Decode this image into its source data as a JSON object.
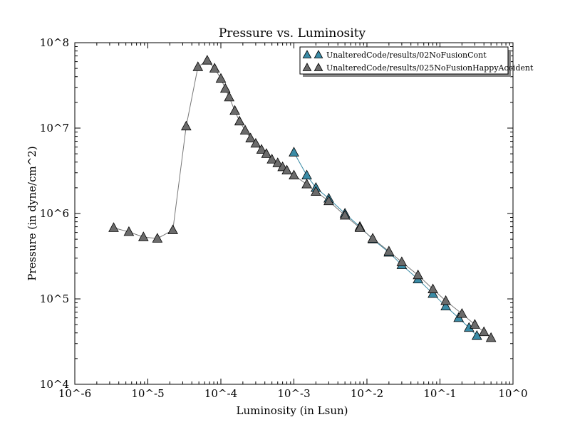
{
  "chart_data": {
    "type": "scatter",
    "title": "Pressure vs. Luminosity",
    "xlabel": "Luminosity (in Lsun)",
    "ylabel": "Pressure (in dyne/cm^2)",
    "xscale": "log",
    "yscale": "log",
    "xlim": [
      1e-06,
      1
    ],
    "ylim": [
      10000,
      100000000
    ],
    "x_tick_values": [
      1e-06,
      1e-05,
      0.0001,
      0.001,
      0.01,
      0.1,
      1
    ],
    "x_tick_labels": [
      "10^-6",
      "10^-5",
      "10^-4",
      "10^-3",
      "10^-2",
      "10^-1",
      "10^0"
    ],
    "y_tick_values": [
      10000,
      100000,
      1000000,
      10000000,
      100000000
    ],
    "y_tick_labels": [
      "10^4",
      "10^5",
      "10^6",
      "10^7",
      "10^8"
    ],
    "grid": false,
    "legend_position": "top-right",
    "marker": "triangle-up",
    "series": [
      {
        "name": "UnalteredCode/results/02NoFusionCont",
        "marker_color": "#3a8ba6",
        "line_color": "#3a8ba6",
        "points": [
          [
            0.001,
            5200000
          ],
          [
            0.0015,
            2800000
          ],
          [
            0.002,
            2000000
          ],
          [
            0.003,
            1500000
          ],
          [
            0.005,
            1000000
          ],
          [
            0.008,
            700000
          ],
          [
            0.012,
            500000
          ],
          [
            0.02,
            350000
          ],
          [
            0.03,
            250000
          ],
          [
            0.05,
            170000
          ],
          [
            0.08,
            115000
          ],
          [
            0.12,
            82000
          ],
          [
            0.18,
            60000
          ],
          [
            0.25,
            46000
          ],
          [
            0.32,
            37000
          ]
        ]
      },
      {
        "name": "UnalteredCode/results/025NoFusionHappyAccident",
        "marker_color": "#6b6b6b",
        "line_color": "#777777",
        "points": [
          [
            3.4e-06,
            680000
          ],
          [
            5.5e-06,
            610000
          ],
          [
            8.7e-06,
            530000
          ],
          [
            1.35e-05,
            510000
          ],
          [
            2.2e-05,
            640000
          ],
          [
            3.35e-05,
            10500000
          ],
          [
            4.85e-05,
            52000000
          ],
          [
            6.5e-05,
            62000000
          ],
          [
            8.2e-05,
            50000000
          ],
          [
            0.0001,
            38000000
          ],
          [
            0.000115,
            29000000
          ],
          [
            0.00013,
            23000000
          ],
          [
            0.000155,
            16000000
          ],
          [
            0.00018,
            12000000
          ],
          [
            0.000215,
            9400000
          ],
          [
            0.000255,
            7600000
          ],
          [
            0.0003,
            6600000
          ],
          [
            0.00036,
            5600000
          ],
          [
            0.00042,
            5000000
          ],
          [
            0.0005,
            4300000
          ],
          [
            0.0006,
            3900000
          ],
          [
            0.0007,
            3500000
          ],
          [
            0.0008,
            3200000
          ],
          [
            0.001,
            2800000
          ],
          [
            0.0015,
            2200000
          ],
          [
            0.002,
            1800000
          ],
          [
            0.003,
            1400000
          ],
          [
            0.005,
            950000
          ],
          [
            0.008,
            680000
          ],
          [
            0.012,
            510000
          ],
          [
            0.02,
            360000
          ],
          [
            0.03,
            270000
          ],
          [
            0.05,
            190000
          ],
          [
            0.08,
            130000
          ],
          [
            0.12,
            95000
          ],
          [
            0.2,
            67000
          ],
          [
            0.3,
            50000
          ],
          [
            0.4,
            41000
          ],
          [
            0.5,
            35000
          ]
        ]
      }
    ]
  }
}
